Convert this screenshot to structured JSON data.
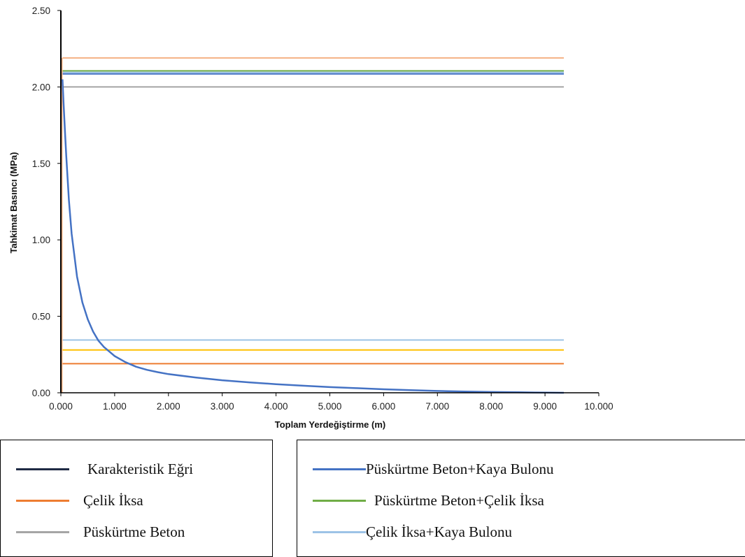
{
  "chart_data": {
    "type": "line",
    "xlabel": "Toplam Yerdeğiştirme (m)",
    "ylabel": "Tahkimat Basıncı (MPa)",
    "xlim": [
      0,
      10
    ],
    "ylim": [
      0,
      2.5
    ],
    "x_ticks": [
      "0.000",
      "1.000",
      "2.000",
      "3.000",
      "4.000",
      "5.000",
      "6.000",
      "7.000",
      "8.000",
      "9.000",
      "10.000"
    ],
    "y_ticks": [
      "0.00",
      "0.50",
      "1.00",
      "1.50",
      "2.00",
      "2.50"
    ],
    "grid": false,
    "characteristic_curve": {
      "name": "Karakteristik Eğri",
      "color": "#4472C4",
      "x": [
        0.03,
        0.05,
        0.08,
        0.1,
        0.15,
        0.2,
        0.3,
        0.4,
        0.5,
        0.6,
        0.7,
        0.8,
        1.0,
        1.2,
        1.4,
        1.6,
        1.8,
        2.0,
        2.5,
        3.0,
        3.5,
        4.0,
        4.5,
        5.0,
        5.5,
        6.0,
        6.5,
        7.0,
        7.5,
        8.0,
        8.5,
        9.0,
        9.35
      ],
      "y": [
        2.05,
        1.9,
        1.68,
        1.55,
        1.26,
        1.04,
        0.76,
        0.59,
        0.48,
        0.4,
        0.34,
        0.3,
        0.24,
        0.2,
        0.17,
        0.15,
        0.135,
        0.122,
        0.1,
        0.082,
        0.068,
        0.056,
        0.046,
        0.037,
        0.03,
        0.023,
        0.017,
        0.012,
        0.008,
        0.005,
        0.003,
        0.001,
        0.0
      ]
    },
    "support_lines": [
      {
        "color": "#F4B183",
        "y": 2.19,
        "x_start": 0.03,
        "x_end": 9.35
      },
      {
        "color": "#70AD47",
        "y": 2.105,
        "x_start": 0.03,
        "x_end": 9.35
      },
      {
        "color": "#9DC3E6",
        "y": 2.095,
        "x_start": 0.03,
        "x_end": 9.35
      },
      {
        "color": "#4472C4",
        "y": 2.085,
        "x_start": 0.03,
        "x_end": 9.35
      },
      {
        "color": "#A5A5A5",
        "y": 2.0,
        "x_start": 0.03,
        "x_end": 9.35
      },
      {
        "color": "#9DC3E6",
        "y": 0.345,
        "x_start": 0.03,
        "x_end": 9.35
      },
      {
        "color": "#FFC000",
        "y": 0.28,
        "x_start": 0.03,
        "x_end": 9.35
      },
      {
        "color": "#ED7D31",
        "y": 0.19,
        "x_start": 0.03,
        "x_end": 9.35
      }
    ],
    "legend_left": [
      {
        "label": "Karakteristik Eğri",
        "color": "#1F2A44"
      },
      {
        "label": "Çelik İksa",
        "color": "#ED7D31"
      },
      {
        "label": "Püskürtme Beton",
        "color": "#A5A5A5"
      }
    ],
    "legend_right": [
      {
        "label": "Püskürtme Beton+Kaya Bulonu",
        "color": "#4472C4"
      },
      {
        "label": "Püskürtme Beton+Çelik İksa",
        "color": "#70AD47"
      },
      {
        "label": "Çelik İksa+Kaya Bulonu",
        "color": "#9DC3E6"
      }
    ],
    "legend_placement": "bottom"
  }
}
